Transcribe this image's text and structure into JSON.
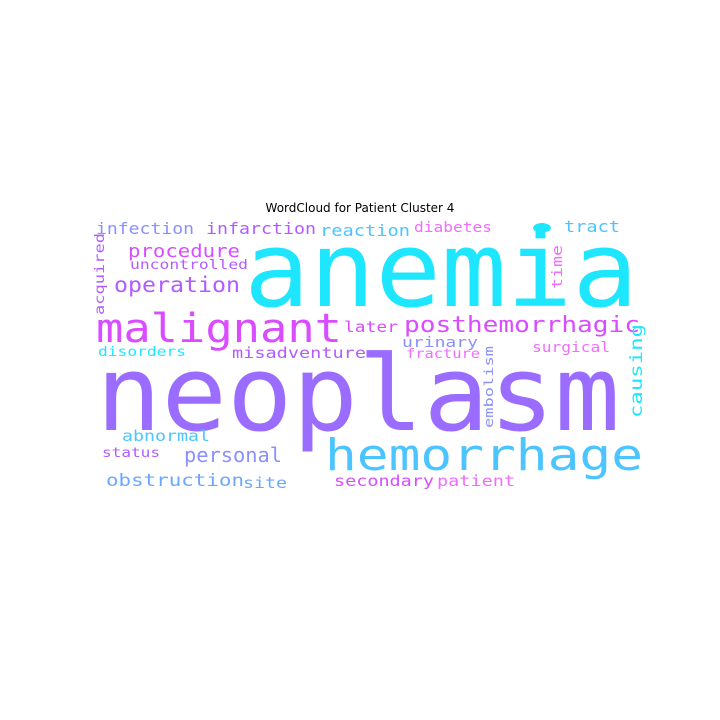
{
  "title": "WordCloud for Patient Cluster 4",
  "palette": {
    "cyan": "#1fe6ff",
    "purple": "#9a6cff",
    "sky": "#4cc4ff",
    "magenta": "#d94cff",
    "violet": "#b25cff",
    "lavender": "#8a90ff",
    "pink": "#f26cff",
    "blue": "#6aa8ff"
  },
  "words": [
    {
      "text": "anemia",
      "color": "cyan"
    },
    {
      "text": "neoplasm",
      "color": "purple"
    },
    {
      "text": "hemorrhage",
      "color": "sky"
    },
    {
      "text": "malignant",
      "color": "magenta"
    },
    {
      "text": "posthemorrhagic",
      "color": "magenta"
    },
    {
      "text": "operation",
      "color": "violet"
    },
    {
      "text": "procedure",
      "color": "magenta"
    },
    {
      "text": "personal",
      "color": "lavender"
    },
    {
      "text": "obstruction",
      "color": "blue"
    },
    {
      "text": "infection",
      "color": "lavender"
    },
    {
      "text": "infarction",
      "color": "violet"
    },
    {
      "text": "reaction",
      "color": "sky"
    },
    {
      "text": "diabetes",
      "color": "pink"
    },
    {
      "text": "tract",
      "color": "sky"
    },
    {
      "text": "uncontrolled",
      "color": "violet"
    },
    {
      "text": "acquired",
      "color": "violet"
    },
    {
      "text": "later",
      "color": "magenta"
    },
    {
      "text": "time",
      "color": "pink"
    },
    {
      "text": "misadventure",
      "color": "violet"
    },
    {
      "text": "urinary",
      "color": "lavender"
    },
    {
      "text": "surgical",
      "color": "pink"
    },
    {
      "text": "causing",
      "color": "cyan"
    },
    {
      "text": "disorders",
      "color": "cyan"
    },
    {
      "text": "fracture",
      "color": "pink"
    },
    {
      "text": "embolism",
      "color": "lavender"
    },
    {
      "text": "abnormal",
      "color": "sky"
    },
    {
      "text": "status",
      "color": "violet"
    },
    {
      "text": "site",
      "color": "blue"
    },
    {
      "text": "secondary",
      "color": "magenta"
    },
    {
      "text": "patient",
      "color": "pink"
    },
    {
      "text": "●",
      "color": "cyan"
    }
  ]
}
